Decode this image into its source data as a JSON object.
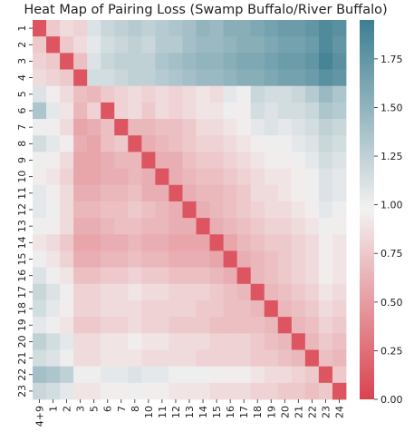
{
  "chart_data": {
    "type": "heatmap",
    "title": "Heat Map of Pairing Loss (Swamp Buffalo/River Buffalo)",
    "x_categories": [
      "4+9",
      "1",
      "2",
      "3",
      "5",
      "6",
      "7",
      "8",
      "10",
      "11",
      "12",
      "13",
      "14",
      "15",
      "16",
      "17",
      "18",
      "19",
      "20",
      "21",
      "22",
      "23",
      "24"
    ],
    "y_categories": [
      "1",
      "2",
      "3",
      "4",
      "5",
      "6",
      "7",
      "8",
      "9",
      "10",
      "11",
      "12",
      "13",
      "14",
      "15",
      "16",
      "17",
      "18",
      "19",
      "20",
      "21",
      "22",
      "23"
    ],
    "colorbar": {
      "min": 0.0,
      "max": 1.95,
      "ticks": [
        0.0,
        0.25,
        0.5,
        0.75,
        1.0,
        1.25,
        1.5,
        1.75
      ],
      "tick_labels": [
        "0.00",
        "0.25",
        "0.50",
        "0.75",
        "1.00",
        "1.25",
        "1.50",
        "1.75"
      ],
      "low_color": "#d9434f",
      "mid_color": "#f3f1f1",
      "high_color": "#3d7f91"
    },
    "values": [
      [
        0.1,
        0.75,
        0.85,
        0.8,
        1.1,
        1.2,
        1.25,
        1.3,
        1.25,
        1.3,
        1.35,
        1.4,
        1.5,
        1.45,
        1.55,
        1.55,
        1.6,
        1.65,
        1.7,
        1.7,
        1.75,
        1.85,
        1.8
      ],
      [
        0.75,
        0.1,
        0.75,
        0.85,
        1.05,
        1.15,
        1.2,
        1.25,
        1.2,
        1.3,
        1.3,
        1.4,
        1.45,
        1.45,
        1.5,
        1.55,
        1.55,
        1.6,
        1.65,
        1.65,
        1.7,
        1.85,
        1.75
      ],
      [
        0.8,
        0.75,
        0.1,
        0.7,
        1.1,
        1.2,
        1.25,
        1.25,
        1.25,
        1.35,
        1.4,
        1.45,
        1.5,
        1.5,
        1.55,
        1.6,
        1.6,
        1.65,
        1.7,
        1.7,
        1.75,
        1.9,
        1.8
      ],
      [
        0.85,
        0.8,
        0.75,
        0.1,
        1.15,
        1.15,
        1.2,
        1.25,
        1.25,
        1.3,
        1.35,
        1.4,
        1.45,
        1.45,
        1.5,
        1.55,
        1.55,
        1.6,
        1.65,
        1.65,
        1.7,
        1.8,
        1.75
      ],
      [
        1.1,
        0.95,
        0.85,
        0.7,
        0.65,
        0.75,
        0.8,
        0.85,
        0.8,
        0.85,
        0.8,
        0.85,
        0.9,
        0.85,
        1.05,
        1.0,
        1.2,
        1.15,
        1.15,
        1.2,
        1.3,
        1.45,
        1.35
      ],
      [
        1.35,
        1.05,
        0.9,
        0.65,
        0.8,
        0.1,
        0.8,
        0.85,
        0.75,
        0.85,
        0.8,
        0.85,
        0.9,
        0.9,
        1.0,
        0.95,
        1.15,
        1.1,
        1.15,
        1.15,
        1.2,
        1.35,
        1.3
      ],
      [
        1.0,
        0.95,
        0.85,
        0.55,
        0.6,
        0.7,
        0.1,
        0.65,
        0.65,
        0.7,
        0.7,
        0.75,
        0.85,
        0.85,
        0.9,
        0.95,
        1.05,
        1.1,
        1.05,
        1.1,
        1.15,
        1.25,
        1.2
      ],
      [
        1.15,
        1.05,
        0.95,
        0.6,
        0.55,
        0.7,
        0.75,
        0.1,
        0.6,
        0.65,
        0.7,
        0.75,
        0.8,
        0.8,
        0.85,
        0.9,
        0.95,
        1.0,
        1.0,
        1.05,
        1.1,
        1.2,
        1.15
      ],
      [
        1.0,
        0.95,
        0.85,
        0.55,
        0.55,
        0.6,
        0.65,
        0.65,
        0.1,
        0.6,
        0.6,
        0.7,
        0.75,
        0.75,
        0.8,
        0.85,
        0.9,
        0.95,
        0.95,
        1.0,
        1.05,
        1.15,
        1.1
      ],
      [
        0.95,
        0.9,
        0.8,
        0.55,
        0.55,
        0.6,
        0.6,
        0.65,
        0.6,
        0.1,
        0.6,
        0.65,
        0.7,
        0.7,
        0.75,
        0.8,
        0.85,
        0.9,
        0.9,
        0.95,
        1.0,
        1.1,
        1.05
      ],
      [
        1.05,
        0.95,
        0.85,
        0.6,
        0.6,
        0.65,
        0.65,
        0.7,
        0.6,
        0.6,
        0.1,
        0.6,
        0.65,
        0.65,
        0.7,
        0.75,
        0.85,
        0.85,
        0.9,
        0.95,
        1.0,
        1.1,
        1.05
      ],
      [
        1.05,
        1.0,
        0.85,
        0.65,
        0.65,
        0.7,
        0.7,
        0.75,
        0.7,
        0.65,
        0.6,
        0.1,
        0.6,
        0.65,
        0.7,
        0.75,
        0.8,
        0.85,
        0.85,
        0.9,
        0.95,
        1.05,
        1.0
      ],
      [
        1.0,
        0.95,
        0.85,
        0.6,
        0.6,
        0.65,
        0.7,
        0.7,
        0.65,
        0.65,
        0.6,
        0.6,
        0.1,
        0.6,
        0.65,
        0.7,
        0.75,
        0.8,
        0.8,
        0.85,
        0.9,
        1.0,
        0.95
      ],
      [
        0.9,
        0.85,
        0.75,
        0.55,
        0.55,
        0.6,
        0.6,
        0.65,
        0.6,
        0.6,
        0.55,
        0.55,
        0.55,
        0.1,
        0.55,
        0.65,
        0.7,
        0.75,
        0.75,
        0.8,
        0.85,
        0.95,
        0.9
      ],
      [
        1.0,
        0.9,
        0.8,
        0.6,
        0.6,
        0.65,
        0.65,
        0.7,
        0.65,
        0.65,
        0.6,
        0.6,
        0.6,
        0.55,
        0.1,
        0.6,
        0.65,
        0.7,
        0.75,
        0.8,
        0.85,
        0.95,
        0.9
      ],
      [
        1.1,
        1.0,
        0.9,
        0.7,
        0.7,
        0.75,
        0.75,
        0.8,
        0.75,
        0.75,
        0.7,
        0.7,
        0.7,
        0.65,
        0.6,
        0.1,
        0.65,
        0.7,
        0.75,
        0.8,
        0.85,
        0.95,
        0.9
      ],
      [
        1.2,
        1.1,
        1.0,
        0.8,
        0.8,
        0.85,
        0.85,
        0.9,
        0.85,
        0.85,
        0.8,
        0.8,
        0.8,
        0.75,
        0.7,
        0.65,
        0.1,
        0.65,
        0.7,
        0.75,
        0.8,
        0.9,
        0.85
      ],
      [
        1.15,
        1.05,
        0.95,
        0.8,
        0.8,
        0.85,
        0.85,
        0.85,
        0.8,
        0.8,
        0.8,
        0.8,
        0.75,
        0.75,
        0.7,
        0.7,
        0.65,
        0.1,
        0.65,
        0.7,
        0.75,
        0.85,
        0.8
      ],
      [
        1.05,
        1.0,
        0.9,
        0.75,
        0.75,
        0.8,
        0.8,
        0.85,
        0.8,
        0.8,
        0.75,
        0.75,
        0.75,
        0.7,
        0.7,
        0.7,
        0.7,
        0.65,
        0.1,
        0.65,
        0.7,
        0.8,
        0.75
      ],
      [
        1.25,
        1.15,
        1.05,
        0.85,
        0.85,
        0.9,
        0.9,
        0.95,
        0.9,
        0.9,
        0.85,
        0.85,
        0.85,
        0.8,
        0.8,
        0.8,
        0.75,
        0.7,
        0.65,
        0.1,
        0.65,
        0.75,
        0.7
      ],
      [
        1.15,
        1.1,
        1.0,
        0.85,
        0.85,
        0.9,
        0.9,
        0.9,
        0.85,
        0.85,
        0.85,
        0.85,
        0.8,
        0.8,
        0.8,
        0.8,
        0.75,
        0.75,
        0.7,
        0.65,
        0.1,
        0.7,
        0.65
      ],
      [
        1.4,
        1.35,
        1.25,
        1.0,
        1.0,
        1.05,
        1.05,
        1.1,
        1.05,
        1.05,
        1.0,
        1.0,
        1.0,
        0.95,
        0.95,
        0.95,
        0.9,
        0.85,
        0.85,
        0.8,
        0.75,
        0.1,
        0.75
      ],
      [
        1.2,
        1.15,
        1.05,
        0.9,
        0.9,
        0.95,
        0.95,
        1.0,
        0.95,
        0.95,
        0.9,
        0.9,
        0.9,
        0.85,
        0.85,
        0.85,
        0.8,
        0.8,
        0.75,
        0.75,
        0.7,
        0.75,
        0.1
      ]
    ]
  }
}
